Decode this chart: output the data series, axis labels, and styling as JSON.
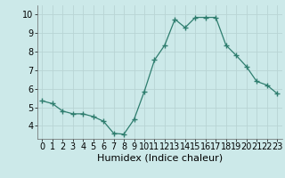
{
  "x": [
    0,
    1,
    2,
    3,
    4,
    5,
    6,
    7,
    8,
    9,
    10,
    11,
    12,
    13,
    14,
    15,
    16,
    17,
    18,
    19,
    20,
    21,
    22,
    23
  ],
  "y": [
    5.35,
    5.2,
    4.8,
    4.65,
    4.65,
    4.5,
    4.25,
    3.6,
    3.55,
    4.35,
    5.85,
    7.55,
    8.35,
    9.75,
    9.3,
    9.85,
    9.85,
    9.85,
    8.35,
    7.8,
    7.2,
    6.4,
    6.2,
    5.75
  ],
  "xlabel": "Humidex (Indice chaleur)",
  "xlim": [
    -0.5,
    23.5
  ],
  "ylim": [
    3.3,
    10.5
  ],
  "yticks": [
    4,
    5,
    6,
    7,
    8,
    9,
    10
  ],
  "xticks": [
    0,
    1,
    2,
    3,
    4,
    5,
    6,
    7,
    8,
    9,
    10,
    11,
    12,
    13,
    14,
    15,
    16,
    17,
    18,
    19,
    20,
    21,
    22,
    23
  ],
  "line_color": "#2e7d6e",
  "marker": "+",
  "marker_size": 5,
  "bg_color": "#cce9e9",
  "grid_color": "#b8d4d4",
  "xlabel_fontsize": 8,
  "tick_fontsize": 7
}
